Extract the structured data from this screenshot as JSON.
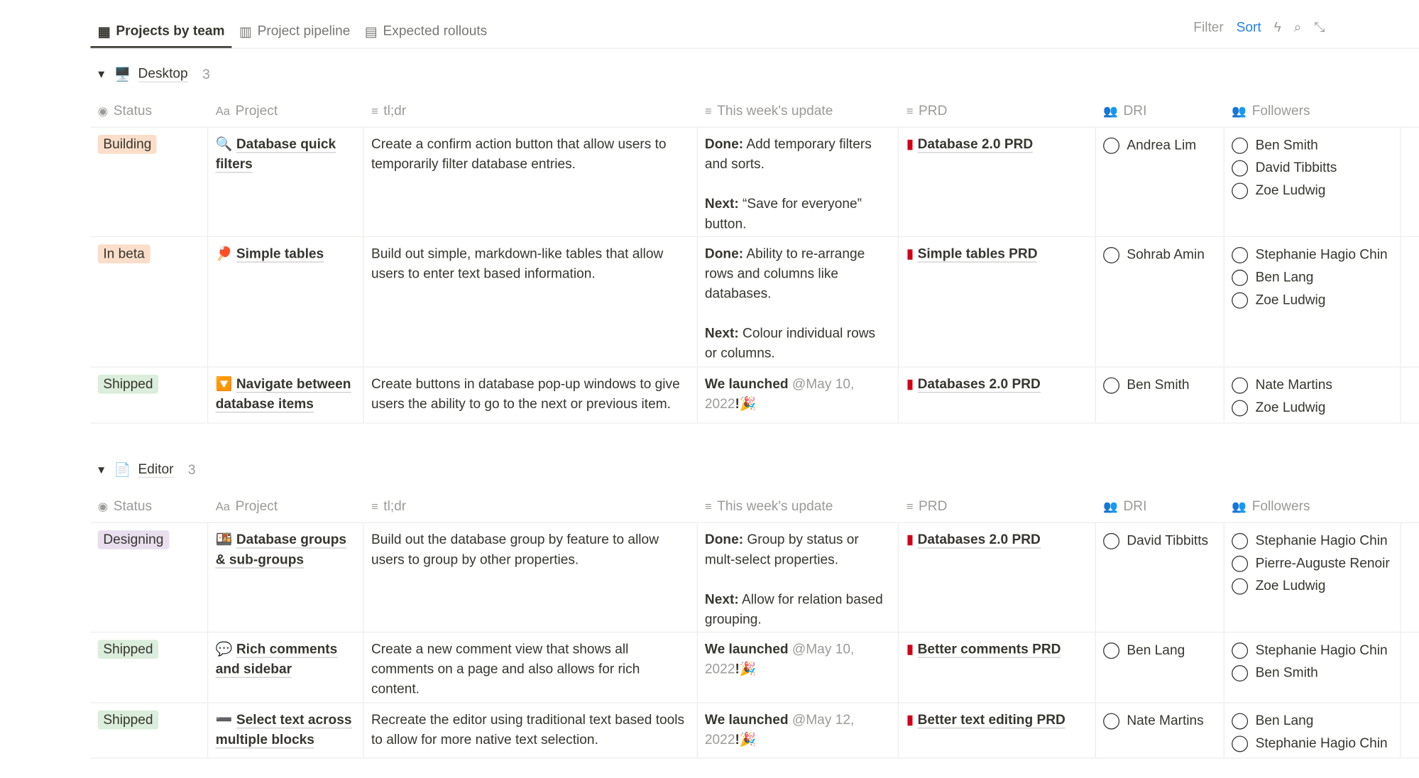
{
  "tabs": [
    {
      "label": "Projects by team",
      "icon": "table-icon",
      "active": true
    },
    {
      "label": "Project pipeline",
      "icon": "board-icon"
    },
    {
      "label": "Expected rollouts",
      "icon": "timeline-icon"
    }
  ],
  "toolbar": {
    "filter": "Filter",
    "sort": "Sort"
  },
  "columns": [
    "Status",
    "Project",
    "tl;dr",
    "This week's update",
    "PRD",
    "DRI",
    "Followers"
  ],
  "status_colors": {
    "Building": "#fadec9",
    "In beta": "#fadec9",
    "Shipped": "#dbeddb",
    "Designing": "#e8deee"
  },
  "groups": [
    {
      "name": "Desktop",
      "icon": "🖥️",
      "count": "3",
      "rows": [
        {
          "status": "Building",
          "icon": "🔍",
          "project": "Database quick filters",
          "tldr": "Create a confirm action button that allow users to temporarily filter database entries.",
          "update": [
            {
              "k": "Done:",
              "v": " Add temporary filters and sorts."
            },
            {
              "k": "Next:",
              "v": " “Save for everyone” button."
            }
          ],
          "prd": "Database 2.0 PRD",
          "dri": "Andrea Lim",
          "followers": [
            "Ben Smith",
            "David Tibbitts",
            "Zoe Ludwig"
          ]
        },
        {
          "status": "In beta",
          "icon": "🏓",
          "project": "Simple tables",
          "tldr": "Build out simple, markdown-like tables that allow users to enter text based information.",
          "update": [
            {
              "k": "Done:",
              "v": " Ability to re-arrange rows and columns like databases."
            },
            {
              "k": "Next:",
              "v": " Colour individual rows or columns."
            }
          ],
          "prd": "Simple tables PRD",
          "dri": "Sohrab Amin",
          "followers": [
            "Stephanie Hagio Chin",
            "Ben Lang",
            "Zoe Ludwig"
          ]
        },
        {
          "status": "Shipped",
          "icon": "🔽",
          "project": "Navigate between database items",
          "tldr": "Create buttons in database pop-up windows to give users the ability to go to the next or previous item.",
          "launch": {
            "k": "We launched",
            "d": "@May 10, 2022",
            "e": "!🎉"
          },
          "prd": "Databases 2.0 PRD",
          "dri": "Ben Smith",
          "followers": [
            "Nate Martins",
            "Zoe Ludwig"
          ]
        }
      ]
    },
    {
      "name": "Editor",
      "icon": "📄",
      "count": "3",
      "rows": [
        {
          "status": "Designing",
          "icon": "🍱",
          "project": "Database groups & sub-groups",
          "tldr": "Build out the database group by feature to allow users to group by other properties.",
          "update": [
            {
              "k": "Done:",
              "v": " Group by status or mult-select properties."
            },
            {
              "k": "Next:",
              "v": " Allow for relation based grouping."
            }
          ],
          "prd": "Databases 2.0 PRD",
          "dri": "David Tibbitts",
          "followers": [
            "Stephanie Hagio Chin",
            "Pierre-Auguste Renoir",
            "Zoe Ludwig"
          ]
        },
        {
          "status": "Shipped",
          "icon": "💬",
          "project": "Rich comments and sidebar",
          "tldr": "Create a new comment view that shows all comments on a page and also allows for rich content.",
          "launch": {
            "k": "We launched",
            "d": "@May 10, 2022",
            "e": "!🎉"
          },
          "prd": "Better comments PRD",
          "dri": "Ben Lang",
          "followers": [
            "Stephanie Hagio Chin",
            "Ben Smith"
          ]
        },
        {
          "status": "Shipped",
          "icon": "➖",
          "project": "Select text across multiple blocks",
          "tldr": "Recreate the editor using traditional text based tools to allow for more native text selection.",
          "launch": {
            "k": "We launched",
            "d": "@May 12, 2022",
            "e": "!🎉"
          },
          "prd": "Better text editing PRD",
          "dri": "Nate Martins",
          "followers": [
            "Ben Lang",
            "Stephanie Hagio Chin"
          ]
        }
      ]
    }
  ]
}
